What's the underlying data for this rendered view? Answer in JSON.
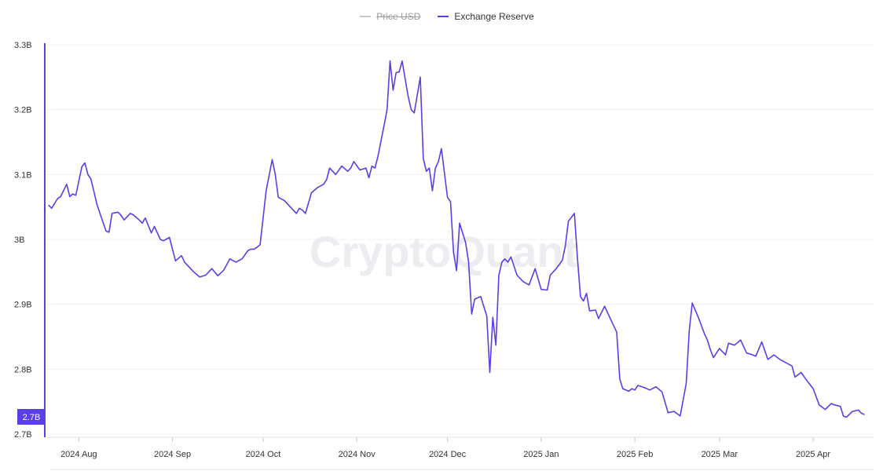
{
  "legend": {
    "items": [
      {
        "label": "Price USD",
        "color": "#c9c9c9",
        "enabled": false
      },
      {
        "label": "Exchange Reserve",
        "color": "#5b3ee6",
        "enabled": true
      }
    ]
  },
  "watermark": "CryptoQuant",
  "chart_data": {
    "type": "line",
    "title": "",
    "xlabel": "",
    "ylabel": "",
    "ylim": [
      2.7,
      3.3
    ],
    "y_ticks": [
      {
        "value": 3.3,
        "label": "3.3B"
      },
      {
        "value": 3.2,
        "label": "3.2B"
      },
      {
        "value": 3.1,
        "label": "3.1B"
      },
      {
        "value": 3.0,
        "label": "3B"
      },
      {
        "value": 2.9,
        "label": "2.9B"
      },
      {
        "value": 2.8,
        "label": "2.8B"
      },
      {
        "value": 2.7,
        "label": "2.7B"
      }
    ],
    "x_range": [
      "2024-07-21",
      "2025-04-21"
    ],
    "x_ticks": [
      {
        "date": "2024-08-01",
        "label": "2024 Aug"
      },
      {
        "date": "2024-09-01",
        "label": "2024 Sep"
      },
      {
        "date": "2024-10-01",
        "label": "2024 Oct"
      },
      {
        "date": "2024-11-01",
        "label": "2024 Nov"
      },
      {
        "date": "2024-12-01",
        "label": "2024 Dec"
      },
      {
        "date": "2025-01-01",
        "label": "2025 Jan"
      },
      {
        "date": "2025-02-01",
        "label": "2025 Feb"
      },
      {
        "date": "2025-03-01",
        "label": "2025 Mar"
      },
      {
        "date": "2025-04-01",
        "label": "2025 Apr"
      }
    ],
    "current_value_label": "2.7B",
    "grid": true,
    "legend_position": "top-center",
    "series": [
      {
        "name": "Exchange Reserve",
        "color": "#5b3ee6",
        "x": [
          "2024-07-22",
          "2024-07-23",
          "2024-07-25",
          "2024-07-26",
          "2024-07-28",
          "2024-07-29",
          "2024-07-30",
          "2024-07-31",
          "2024-08-02",
          "2024-08-03",
          "2024-08-04",
          "2024-08-05",
          "2024-08-06",
          "2024-08-07",
          "2024-08-10",
          "2024-08-11",
          "2024-08-12",
          "2024-08-14",
          "2024-08-15",
          "2024-08-16",
          "2024-08-18",
          "2024-08-19",
          "2024-08-21",
          "2024-08-22",
          "2024-08-23",
          "2024-08-25",
          "2024-08-26",
          "2024-08-28",
          "2024-08-29",
          "2024-08-31",
          "2024-09-02",
          "2024-09-04",
          "2024-09-05",
          "2024-09-06",
          "2024-09-08",
          "2024-09-10",
          "2024-09-12",
          "2024-09-14",
          "2024-09-16",
          "2024-09-18",
          "2024-09-20",
          "2024-09-22",
          "2024-09-24",
          "2024-09-26",
          "2024-09-27",
          "2024-09-28",
          "2024-09-29",
          "2024-09-30",
          "2024-10-02",
          "2024-10-04",
          "2024-10-05",
          "2024-10-06",
          "2024-10-08",
          "2024-10-10",
          "2024-10-12",
          "2024-10-13",
          "2024-10-14",
          "2024-10-15",
          "2024-10-17",
          "2024-10-19",
          "2024-10-21",
          "2024-10-22",
          "2024-10-23",
          "2024-10-25",
          "2024-10-27",
          "2024-10-29",
          "2024-10-30",
          "2024-10-31",
          "2024-11-02",
          "2024-11-04",
          "2024-11-05",
          "2024-11-06",
          "2024-11-07",
          "2024-11-08",
          "2024-11-10",
          "2024-11-11",
          "2024-11-12",
          "2024-11-13",
          "2024-11-14",
          "2024-11-15",
          "2024-11-16",
          "2024-11-18",
          "2024-11-19",
          "2024-11-20",
          "2024-11-22",
          "2024-11-23",
          "2024-11-24",
          "2024-11-25",
          "2024-11-26",
          "2024-11-27",
          "2024-11-28",
          "2024-11-29",
          "2024-12-01",
          "2024-12-02",
          "2024-12-03",
          "2024-12-04",
          "2024-12-05",
          "2024-12-07",
          "2024-12-08",
          "2024-12-09",
          "2024-12-10",
          "2024-12-12",
          "2024-12-14",
          "2024-12-15",
          "2024-12-16",
          "2024-12-17",
          "2024-12-18",
          "2024-12-19",
          "2024-12-20",
          "2024-12-21",
          "2024-12-22",
          "2024-12-24",
          "2024-12-26",
          "2024-12-28",
          "2024-12-30",
          "2025-01-01",
          "2025-01-03",
          "2025-01-04",
          "2025-01-06",
          "2025-01-08",
          "2025-01-09",
          "2025-01-10",
          "2025-01-12",
          "2025-01-13",
          "2025-01-14",
          "2025-01-15",
          "2025-01-16",
          "2025-01-17",
          "2025-01-19",
          "2025-01-20",
          "2025-01-22",
          "2025-01-24",
          "2025-01-26",
          "2025-01-27",
          "2025-01-28",
          "2025-01-30",
          "2025-01-31",
          "2025-02-01",
          "2025-02-02",
          "2025-02-04",
          "2025-02-06",
          "2025-02-08",
          "2025-02-10",
          "2025-02-12",
          "2025-02-14",
          "2025-02-16",
          "2025-02-18",
          "2025-02-19",
          "2025-02-20",
          "2025-02-22",
          "2025-02-24",
          "2025-02-25",
          "2025-02-26",
          "2025-02-27",
          "2025-02-28",
          "2025-03-01",
          "2025-03-03",
          "2025-03-04",
          "2025-03-06",
          "2025-03-08",
          "2025-03-10",
          "2025-03-12",
          "2025-03-13",
          "2025-03-15",
          "2025-03-17",
          "2025-03-19",
          "2025-03-21",
          "2025-03-23",
          "2025-03-25",
          "2025-03-26",
          "2025-03-28",
          "2025-03-30",
          "2025-04-01",
          "2025-04-03",
          "2025-04-05",
          "2025-04-07",
          "2025-04-08",
          "2025-04-10",
          "2025-04-11",
          "2025-04-12",
          "2025-04-14",
          "2025-04-16",
          "2025-04-17",
          "2025-04-18"
        ],
        "values": [
          3.053,
          3.048,
          3.063,
          3.066,
          3.085,
          3.066,
          3.07,
          3.068,
          3.112,
          3.118,
          3.1,
          3.093,
          3.074,
          3.054,
          3.013,
          3.011,
          3.04,
          3.042,
          3.037,
          3.03,
          3.04,
          3.038,
          3.03,
          3.025,
          3.033,
          3.01,
          3.02,
          3.0,
          2.998,
          3.003,
          2.967,
          2.975,
          2.965,
          2.96,
          2.95,
          2.942,
          2.945,
          2.955,
          2.944,
          2.953,
          2.97,
          2.965,
          2.97,
          2.983,
          2.985,
          2.985,
          2.988,
          2.992,
          3.075,
          3.123,
          3.1,
          3.065,
          3.06,
          3.05,
          3.04,
          3.048,
          3.045,
          3.04,
          3.072,
          3.08,
          3.085,
          3.092,
          3.11,
          3.1,
          3.113,
          3.105,
          3.11,
          3.12,
          3.107,
          3.11,
          3.095,
          3.113,
          3.11,
          3.128,
          3.175,
          3.2,
          3.275,
          3.23,
          3.257,
          3.258,
          3.275,
          3.22,
          3.2,
          3.195,
          3.25,
          3.125,
          3.105,
          3.11,
          3.075,
          3.11,
          3.12,
          3.14,
          3.065,
          3.058,
          2.98,
          2.952,
          3.025,
          2.995,
          2.965,
          2.885,
          2.908,
          2.912,
          2.882,
          2.795,
          2.88,
          2.837,
          2.945,
          2.965,
          2.97,
          2.965,
          2.973,
          2.945,
          2.935,
          2.93,
          2.955,
          2.923,
          2.922,
          2.945,
          2.955,
          2.968,
          2.99,
          3.028,
          3.04,
          2.972,
          2.912,
          2.905,
          2.917,
          2.89,
          2.891,
          2.878,
          2.897,
          2.877,
          2.857,
          2.785,
          2.77,
          2.766,
          2.77,
          2.768,
          2.775,
          2.772,
          2.768,
          2.773,
          2.765,
          2.733,
          2.735,
          2.728,
          2.778,
          2.86,
          2.902,
          2.88,
          2.855,
          2.845,
          2.83,
          2.818,
          2.825,
          2.832,
          2.822,
          2.84,
          2.837,
          2.845,
          2.825,
          2.822,
          2.82,
          2.842,
          2.815,
          2.822,
          2.815,
          2.81,
          2.805,
          2.788,
          2.795,
          2.782,
          2.77,
          2.745,
          2.738,
          2.747,
          2.745,
          2.743,
          2.728,
          2.726,
          2.735,
          2.737,
          2.732,
          2.73
        ]
      }
    ]
  }
}
